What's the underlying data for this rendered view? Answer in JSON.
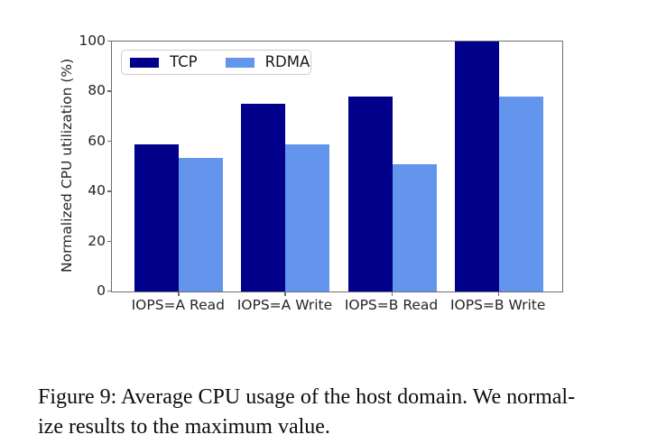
{
  "chart_data": {
    "type": "bar",
    "title": "",
    "categories": [
      "IOPS=A Read",
      "IOPS=A Write",
      "IOPS=B Read",
      "IOPS=B Write"
    ],
    "series": [
      {
        "name": "TCP",
        "color": "#00008b",
        "values": [
          59,
          75,
          78,
          100
        ]
      },
      {
        "name": "RDMA",
        "color": "#6495ed",
        "values": [
          53.5,
          59,
          51,
          78
        ]
      }
    ],
    "xlabel": "",
    "ylabel": "Normalized CPU utilization (%)",
    "yticks": [
      0,
      20,
      40,
      60,
      80,
      100
    ],
    "ylim": [
      0,
      100
    ],
    "grid": false,
    "legend_position": "upper left"
  },
  "caption": {
    "lines": [
      "Figure 9: Average CPU usage of the host domain. We normal-",
      "ize results to the maximum value."
    ]
  }
}
